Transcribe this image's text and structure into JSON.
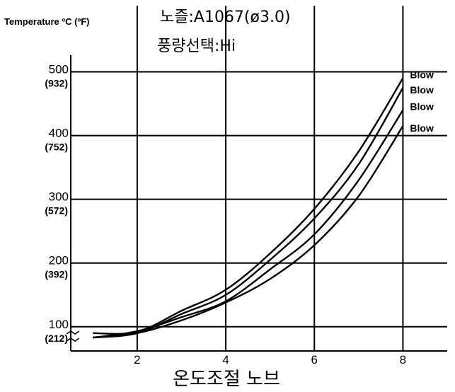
{
  "chart_data": {
    "type": "line",
    "title_lines": [
      "노즐:A1067(ø3.0)",
      "풍량선택:Hi"
    ],
    "ylabel": "Temperature ºC (ºF)",
    "xlabel": "온도조절 노브",
    "xlim": [
      0.5,
      9
    ],
    "ylim": [
      62,
      515
    ],
    "x_ticks": [
      {
        "value": 2,
        "label": "2"
      },
      {
        "value": 4,
        "label": "4"
      },
      {
        "value": 6,
        "label": "6"
      },
      {
        "value": 8,
        "label": "8"
      }
    ],
    "y_ticks": [
      {
        "value": 100,
        "label": "100",
        "sublabel": "(212)"
      },
      {
        "value": 200,
        "label": "200",
        "sublabel": "(392)"
      },
      {
        "value": 300,
        "label": "300",
        "sublabel": "(572)"
      },
      {
        "value": 400,
        "label": "400",
        "sublabel": "(752)"
      },
      {
        "value": 500,
        "label": "500",
        "sublabel": "(932)"
      }
    ],
    "grid": true,
    "series": [
      {
        "name": "Blow",
        "x": [
          1,
          2,
          3,
          4,
          5,
          6,
          7,
          8
        ],
        "values": [
          90,
          92,
          125,
          158,
          215,
          285,
          375,
          490
        ]
      },
      {
        "name": "Blow",
        "x": [
          1,
          2,
          3,
          4,
          5,
          6,
          7,
          8
        ],
        "values": [
          83,
          90,
          120,
          150,
          205,
          270,
          355,
          475
        ]
      },
      {
        "name": "Blow",
        "x": [
          1,
          2,
          3,
          4,
          5,
          6,
          7,
          8
        ],
        "values": [
          83,
          93,
          115,
          140,
          190,
          245,
          330,
          440
        ]
      },
      {
        "name": "Blow",
        "x": [
          1,
          2,
          3,
          4,
          5,
          6,
          7,
          8
        ],
        "values": [
          83,
          90,
          110,
          138,
          175,
          228,
          305,
          415
        ]
      }
    ]
  }
}
